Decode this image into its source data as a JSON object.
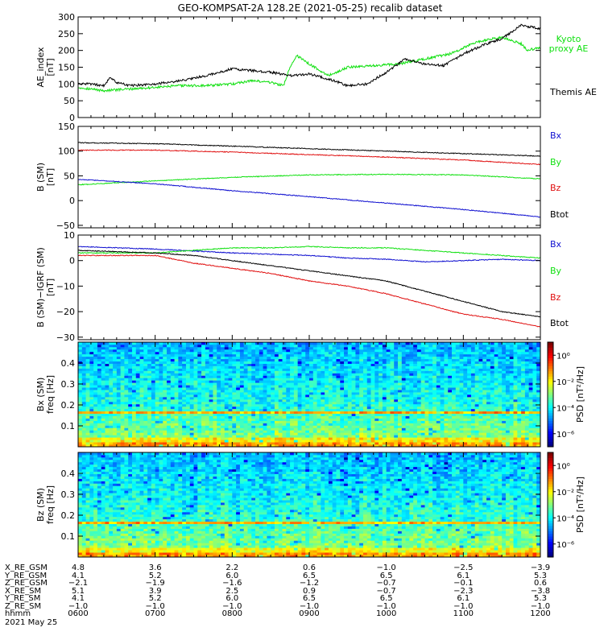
{
  "title": "GEO-KOMPSAT-2A 128.2E (2021-05-25) recalib dataset",
  "colors": {
    "black": "#000000",
    "red": "#e01010",
    "green": "#10e010",
    "blue": "#1010d0"
  },
  "chart_data": [
    {
      "type": "line",
      "name": "ae_index",
      "ylabel": [
        "AE_index",
        "[nT]"
      ],
      "ylim": [
        0,
        300
      ],
      "yticks": [
        "0",
        "50",
        "100",
        "150",
        "200",
        "250",
        "300"
      ],
      "xlim": [
        0,
        360
      ],
      "series": [
        {
          "name": "Kyoto proxy AE",
          "color": "#10e010",
          "x": [
            0,
            20,
            40,
            60,
            80,
            100,
            120,
            135,
            150,
            160,
            165,
            170,
            180,
            195,
            210,
            230,
            250,
            270,
            290,
            310,
            330,
            345,
            350,
            360
          ],
          "y": [
            90,
            80,
            85,
            90,
            95,
            95,
            100,
            110,
            105,
            95,
            150,
            185,
            160,
            125,
            150,
            155,
            160,
            175,
            190,
            225,
            240,
            220,
            200,
            210
          ]
        },
        {
          "name": "Themis AE",
          "color": "#000000",
          "x": [
            0,
            10,
            20,
            25,
            30,
            40,
            60,
            80,
            100,
            120,
            135,
            150,
            165,
            180,
            195,
            210,
            225,
            240,
            255,
            270,
            285,
            300,
            315,
            330,
            345,
            360
          ],
          "y": [
            100,
            100,
            95,
            120,
            105,
            95,
            100,
            110,
            125,
            145,
            140,
            135,
            125,
            130,
            115,
            95,
            100,
            135,
            175,
            160,
            155,
            190,
            215,
            235,
            275,
            265
          ]
        }
      ],
      "legend": [
        "Kyoto proxy AE",
        "Themis AE"
      ]
    },
    {
      "type": "line",
      "name": "b_sm",
      "ylabel": [
        "B (SM)",
        "[nT]"
      ],
      "ylim": [
        -55,
        150
      ],
      "yticks": [
        "−50",
        "0",
        "50",
        "100",
        "150"
      ],
      "xlim": [
        0,
        360
      ],
      "series": [
        {
          "name": "Btot",
          "color": "#000000",
          "x": [
            0,
            60,
            120,
            180,
            240,
            300,
            360
          ],
          "y": [
            117,
            115,
            110,
            105,
            100,
            95,
            90
          ]
        },
        {
          "name": "Bz",
          "color": "#e01010",
          "x": [
            0,
            60,
            120,
            180,
            240,
            300,
            360
          ],
          "y": [
            102,
            102,
            98,
            93,
            88,
            82,
            73
          ]
        },
        {
          "name": "By",
          "color": "#10e010",
          "x": [
            0,
            60,
            120,
            180,
            240,
            300,
            360
          ],
          "y": [
            32,
            40,
            47,
            52,
            53,
            52,
            44
          ]
        },
        {
          "name": "Bx",
          "color": "#1010d0",
          "x": [
            0,
            60,
            120,
            180,
            240,
            300,
            360
          ],
          "y": [
            43,
            34,
            20,
            8,
            -5,
            -18,
            -33
          ]
        }
      ],
      "legend": [
        "Bx",
        "By",
        "Bz",
        "Btot"
      ]
    },
    {
      "type": "line",
      "name": "b_minus_igrf",
      "ylabel": [
        "B (SM)−IGRF (SM)",
        "[nT]"
      ],
      "ylim": [
        -31,
        10
      ],
      "yticks": [
        "−30",
        "−20",
        "−10",
        "0",
        "10"
      ],
      "xlim": [
        0,
        360
      ],
      "series": [
        {
          "name": "Bx",
          "color": "#1010d0",
          "x": [
            0,
            60,
            120,
            150,
            180,
            210,
            240,
            270,
            300,
            330,
            360
          ],
          "y": [
            5.5,
            4.5,
            3,
            2.5,
            2,
            1,
            0.5,
            -0.5,
            0,
            0.5,
            0
          ]
        },
        {
          "name": "By",
          "color": "#10e010",
          "x": [
            0,
            60,
            120,
            150,
            180,
            210,
            240,
            270,
            300,
            330,
            360
          ],
          "y": [
            3,
            3,
            5,
            5,
            5.5,
            5,
            5,
            4,
            3,
            2,
            1
          ]
        },
        {
          "name": "Bz",
          "color": "#e01010",
          "x": [
            0,
            60,
            90,
            120,
            150,
            180,
            210,
            240,
            270,
            300,
            330,
            360
          ],
          "y": [
            2,
            2,
            -1,
            -3,
            -5,
            -8,
            -10,
            -13,
            -17,
            -21,
            -23,
            -26
          ]
        },
        {
          "name": "Btot",
          "color": "#000000",
          "x": [
            0,
            60,
            90,
            120,
            150,
            180,
            210,
            240,
            270,
            300,
            330,
            360
          ],
          "y": [
            4,
            3,
            2,
            0,
            -2,
            -4,
            -6,
            -8,
            -12,
            -16,
            -20,
            -22
          ]
        }
      ],
      "legend": [
        "Bx",
        "By",
        "Bz",
        "Btot"
      ]
    },
    {
      "type": "heatmap",
      "name": "bx_spectrogram",
      "ylabel": [
        "Bx (SM)",
        "freq [Hz]"
      ],
      "ylim": [
        0,
        0.5
      ],
      "yticks": [
        "0.1",
        "0.2",
        "0.3",
        "0.4"
      ],
      "colorbar_label": "PSD [nT²/Hz]",
      "colorbar_ticks": [
        "10⁰",
        "10⁻²",
        "10⁻⁴",
        "10⁻⁶"
      ],
      "colorbar_log_range": [
        -7,
        1
      ],
      "band_freq": 0.168
    },
    {
      "type": "heatmap",
      "name": "bz_spectrogram",
      "ylabel": [
        "Bz (SM)",
        "freq [Hz]"
      ],
      "ylim": [
        0,
        0.5
      ],
      "yticks": [
        "0.1",
        "0.2",
        "0.3",
        "0.4"
      ],
      "colorbar_label": "PSD [nT²/Hz]",
      "colorbar_ticks": [
        "10⁰",
        "10⁻²",
        "10⁻⁴",
        "10⁻⁶"
      ],
      "colorbar_log_range": [
        -7,
        1
      ],
      "band_freq": 0.168
    }
  ],
  "ephemeris": {
    "row_labels": [
      "X_RE_GSM",
      "Y_RE_GSM",
      "Z_RE_GSM",
      "X_RE_SM",
      "Y_RE_SM",
      "Z_RE_SM",
      "hhmm"
    ],
    "columns": [
      [
        "4.8",
        "4.1",
        "−2.1",
        "5.1",
        "4.1",
        "−1.0",
        "0600"
      ],
      [
        "3.6",
        "5.2",
        "−1.9",
        "3.9",
        "5.2",
        "−1.0",
        "0700"
      ],
      [
        "2.2",
        "6.0",
        "−1.6",
        "2.5",
        "6.0",
        "−1.0",
        "0800"
      ],
      [
        "0.6",
        "6.5",
        "−1.2",
        "0.9",
        "6.5",
        "−1.0",
        "0900"
      ],
      [
        "−1.0",
        "6.5",
        "−0.7",
        "−0.7",
        "6.5",
        "−1.0",
        "1000"
      ],
      [
        "−2.5",
        "6.1",
        "−0.1",
        "−2.3",
        "6.1",
        "−1.0",
        "1100"
      ],
      [
        "−3.9",
        "5.3",
        "0.6",
        "−3.8",
        "5.3",
        "−1.0",
        "1200"
      ]
    ],
    "date": "2021 May 25"
  }
}
